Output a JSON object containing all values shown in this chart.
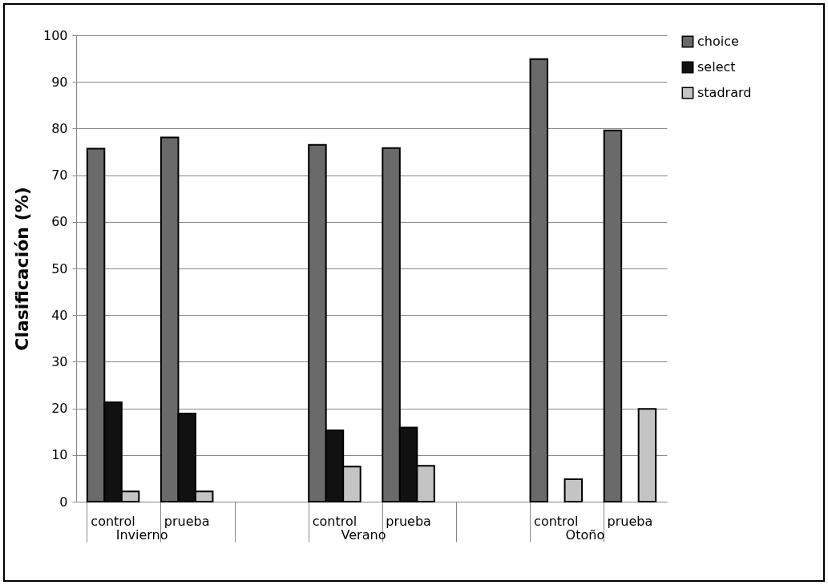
{
  "chart_data": {
    "type": "bar",
    "ylabel": "Clasificación (%)",
    "categories": [
      "control",
      "prueba",
      null,
      "control",
      "prueba",
      null,
      "control",
      "prueba"
    ],
    "series": [
      {
        "name": "choice",
        "color": "#6a6a6a",
        "values": [
          75.7,
          78.1,
          null,
          76.5,
          75.8,
          null,
          94.9,
          79.6
        ]
      },
      {
        "name": "select",
        "color": "#111111",
        "values": [
          21.3,
          18.9,
          null,
          15.3,
          15.9,
          null,
          null,
          null
        ]
      },
      {
        "name": "stadrard",
        "color": "#c4c4c4",
        "values": [
          2.2,
          2.2,
          null,
          7.5,
          7.7,
          null,
          4.8,
          19.9
        ]
      }
    ],
    "annotations": [
      "Invierno",
      "Verano",
      "Otoño"
    ],
    "ylim": [
      0,
      100
    ],
    "yticks": [
      0,
      10,
      20,
      30,
      40,
      50,
      60,
      70,
      80,
      90,
      100
    ],
    "grid": "y",
    "legend": "right"
  }
}
